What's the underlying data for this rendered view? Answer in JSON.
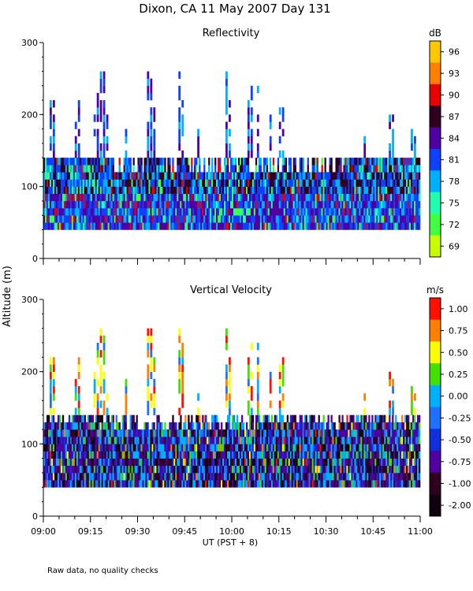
{
  "figure": {
    "title": "Dixon, CA 11 May 2007  Day 131",
    "y_label": "Altitude (m)",
    "x_label": "UT  (PST + 8)",
    "note": "Raw data, no quality checks"
  },
  "chart_data": [
    {
      "type": "heatmap",
      "title": "Reflectivity",
      "xlabel": "UT  (PST + 8)",
      "ylabel": "Altitude (m)",
      "x_ticks": [
        "09:00",
        "09:15",
        "09:30",
        "09:45",
        "10:00",
        "10:15",
        "10:30",
        "10:45",
        "11:00"
      ],
      "xlim_minutes_utc": [
        540,
        660
      ],
      "y_ticks": [
        0,
        100,
        200,
        300
      ],
      "ylim": [
        0,
        300
      ],
      "colorbar": {
        "unit": "dB",
        "labels": [
          "96",
          "93",
          "90",
          "87",
          "84",
          "81",
          "78",
          "75",
          "72",
          "69"
        ],
        "colors": [
          "#ffc800",
          "#ff8000",
          "#e80000",
          "#300020",
          "#5000a0",
          "#1040ff",
          "#00b0ff",
          "#20ffb0",
          "#40ff40",
          "#c8ff00"
        ],
        "range": [
          69,
          96
        ]
      },
      "data_summary": {
        "dense_echo_floor_m": 40,
        "dense_echo_top_m": 140,
        "sparse_echo_max_m": 260,
        "dominant_values_db": "78-87",
        "peak_values_db": "90-93"
      }
    },
    {
      "type": "heatmap",
      "title": "Vertical Velocity",
      "xlabel": "UT  (PST + 8)",
      "ylabel": "Altitude (m)",
      "x_ticks": [
        "09:00",
        "09:15",
        "09:30",
        "09:45",
        "10:00",
        "10:15",
        "10:30",
        "10:45",
        "11:00"
      ],
      "xlim_minutes_utc": [
        540,
        660
      ],
      "y_ticks": [
        0,
        100,
        200,
        300
      ],
      "ylim": [
        0,
        300
      ],
      "colorbar": {
        "unit": "m/s",
        "labels": [
          "1.00",
          "0.75",
          "0.50",
          "0.25",
          "0.00",
          "-0.25",
          "-0.50",
          "-0.75",
          "-1.00",
          "-2.00"
        ],
        "colors": [
          "#ff1000",
          "#ff8000",
          "#ffff00",
          "#40e000",
          "#00b0ff",
          "#2070ff",
          "#1030e0",
          "#5000a0",
          "#300020",
          "#100010"
        ],
        "range": [
          -2.0,
          1.0
        ]
      },
      "data_summary": {
        "dense_echo_floor_m": 40,
        "dense_echo_top_m": 140,
        "sparse_echo_max_m": 260,
        "dominant_values_m_s": "-1.00 to 0.00",
        "peak_values_m_s": "0.50 to 1.00"
      }
    }
  ]
}
